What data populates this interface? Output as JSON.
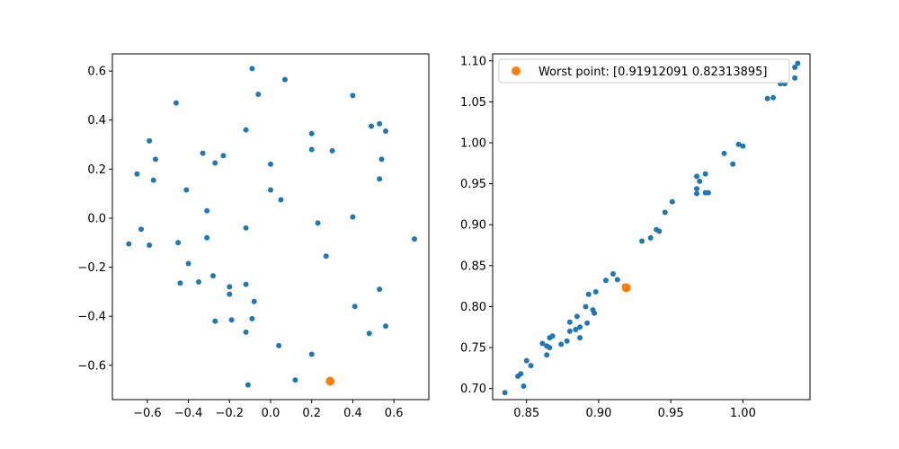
{
  "chart_data": [
    {
      "type": "scatter",
      "xlim": [
        -0.77,
        0.77
      ],
      "ylim": [
        -0.74,
        0.67
      ],
      "xticks": [
        -0.6,
        -0.4,
        -0.2,
        0.0,
        0.2,
        0.4,
        0.6
      ],
      "xtick_labels": [
        "−0.6",
        "−0.4",
        "−0.2",
        "0.0",
        "0.2",
        "0.4",
        "0.6"
      ],
      "yticks": [
        -0.6,
        -0.4,
        -0.2,
        0.0,
        0.2,
        0.4,
        0.6
      ],
      "ytick_labels": [
        "−0.6",
        "−0.4",
        "−0.2",
        "0.0",
        "0.2",
        "0.4",
        "0.6"
      ],
      "grid": false,
      "series": [
        {
          "color": "#1f77b4",
          "marker_size": 3,
          "points": [
            [
              -0.09,
              0.61
            ],
            [
              0.07,
              0.565
            ],
            [
              -0.46,
              0.47
            ],
            [
              -0.06,
              0.505
            ],
            [
              0.4,
              0.5
            ],
            [
              0.49,
              0.375
            ],
            [
              0.53,
              0.385
            ],
            [
              0.56,
              0.355
            ],
            [
              -0.12,
              0.36
            ],
            [
              0.2,
              0.345
            ],
            [
              -0.59,
              0.315
            ],
            [
              -0.33,
              0.265
            ],
            [
              -0.23,
              0.255
            ],
            [
              0.2,
              0.28
            ],
            [
              0.3,
              0.275
            ],
            [
              -0.56,
              0.24
            ],
            [
              -0.27,
              0.225
            ],
            [
              0.0,
              0.22
            ],
            [
              0.54,
              0.24
            ],
            [
              -0.65,
              0.18
            ],
            [
              -0.57,
              0.155
            ],
            [
              0.53,
              0.16
            ],
            [
              -0.41,
              0.115
            ],
            [
              0.0,
              0.115
            ],
            [
              0.05,
              0.075
            ],
            [
              -0.31,
              0.03
            ],
            [
              0.4,
              0.005
            ],
            [
              0.23,
              -0.02
            ],
            [
              -0.12,
              -0.04
            ],
            [
              -0.63,
              -0.045
            ],
            [
              -0.69,
              -0.105
            ],
            [
              -0.59,
              -0.11
            ],
            [
              -0.45,
              -0.1
            ],
            [
              -0.31,
              -0.08
            ],
            [
              0.7,
              -0.085
            ],
            [
              0.27,
              -0.155
            ],
            [
              -0.4,
              -0.185
            ],
            [
              -0.28,
              -0.235
            ],
            [
              -0.35,
              -0.26
            ],
            [
              -0.44,
              -0.265
            ],
            [
              -0.12,
              -0.27
            ],
            [
              -0.2,
              -0.28
            ],
            [
              -0.2,
              -0.31
            ],
            [
              0.53,
              -0.29
            ],
            [
              -0.08,
              -0.34
            ],
            [
              0.41,
              -0.36
            ],
            [
              -0.27,
              -0.42
            ],
            [
              -0.19,
              -0.415
            ],
            [
              -0.09,
              -0.41
            ],
            [
              0.56,
              -0.44
            ],
            [
              -0.12,
              -0.465
            ],
            [
              0.48,
              -0.47
            ],
            [
              0.04,
              -0.52
            ],
            [
              0.2,
              -0.555
            ],
            [
              0.12,
              -0.66
            ],
            [
              -0.11,
              -0.68
            ]
          ]
        },
        {
          "color": "#ff7f0e",
          "marker_size": 5,
          "points": [
            [
              0.29,
              -0.665
            ]
          ]
        }
      ]
    },
    {
      "type": "scatter",
      "xlim": [
        0.8265,
        1.0465
      ],
      "ylim": [
        0.6865,
        1.1085
      ],
      "xticks": [
        0.85,
        0.9,
        0.95,
        1.0
      ],
      "xtick_labels": [
        "0.85",
        "0.90",
        "0.95",
        "1.00"
      ],
      "yticks": [
        0.7,
        0.75,
        0.8,
        0.85,
        0.9,
        0.95,
        1.0,
        1.05,
        1.1
      ],
      "ytick_labels": [
        "0.70",
        "0.75",
        "0.80",
        "0.85",
        "0.90",
        "0.95",
        "1.00",
        "1.05",
        "1.10"
      ],
      "grid": false,
      "legend": {
        "location": "top-left",
        "entries": [
          "Worst point: [0.91912091 0.82313895]"
        ]
      },
      "series": [
        {
          "color": "#1f77b4",
          "marker_size": 3,
          "points": [
            [
              0.835,
              0.695
            ],
            [
              0.844,
              0.715
            ],
            [
              0.846,
              0.718
            ],
            [
              0.848,
              0.703
            ],
            [
              0.85,
              0.734
            ],
            [
              0.853,
              0.728
            ],
            [
              0.861,
              0.755
            ],
            [
              0.864,
              0.741
            ],
            [
              0.864,
              0.752
            ],
            [
              0.866,
              0.762
            ],
            [
              0.866,
              0.75
            ],
            [
              0.868,
              0.764
            ],
            [
              0.874,
              0.754
            ],
            [
              0.878,
              0.758
            ],
            [
              0.88,
              0.781
            ],
            [
              0.88,
              0.77
            ],
            [
              0.884,
              0.772
            ],
            [
              0.885,
              0.788
            ],
            [
              0.887,
              0.762
            ],
            [
              0.887,
              0.775
            ],
            [
              0.891,
              0.8
            ],
            [
              0.892,
              0.78
            ],
            [
              0.893,
              0.815
            ],
            [
              0.896,
              0.796
            ],
            [
              0.897,
              0.792
            ],
            [
              0.898,
              0.818
            ],
            [
              0.905,
              0.832
            ],
            [
              0.91,
              0.84
            ],
            [
              0.913,
              0.833
            ],
            [
              0.918,
              0.825
            ],
            [
              0.93,
              0.88
            ],
            [
              0.936,
              0.884
            ],
            [
              0.94,
              0.894
            ],
            [
              0.942,
              0.892
            ],
            [
              0.946,
              0.915
            ],
            [
              0.951,
              0.928
            ],
            [
              0.968,
              0.959
            ],
            [
              0.97,
              0.953
            ],
            [
              0.968,
              0.944
            ],
            [
              0.968,
              0.938
            ],
            [
              0.974,
              0.962
            ],
            [
              0.974,
              0.939
            ],
            [
              0.976,
              0.939
            ],
            [
              0.987,
              0.987
            ],
            [
              0.993,
              0.974
            ],
            [
              0.997,
              0.998
            ],
            [
              1.0,
              0.996
            ],
            [
              1.017,
              1.054
            ],
            [
              1.021,
              1.055
            ],
            [
              1.026,
              1.072
            ],
            [
              1.029,
              1.072
            ],
            [
              1.036,
              1.092
            ],
            [
              1.036,
              1.079
            ],
            [
              1.038,
              1.097
            ]
          ]
        },
        {
          "color": "#ff7f0e",
          "marker_size": 5,
          "points": [
            [
              0.91912091,
              0.82313895
            ]
          ]
        }
      ]
    }
  ]
}
